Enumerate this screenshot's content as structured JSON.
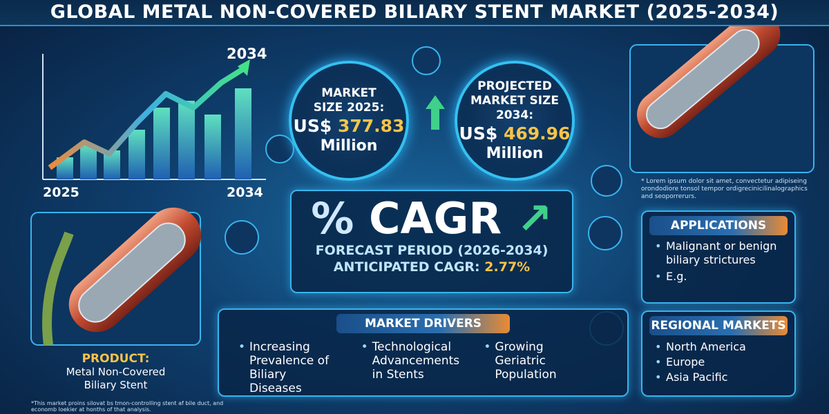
{
  "header": {
    "title": "GLOBAL METAL NON-COVERED BILIARY STENT MARKET (2025-2034)"
  },
  "trend_graphic": {
    "end_label": "2034",
    "x_start": "2025",
    "x_end": "2034"
  },
  "market_size": {
    "label": "MARKET SIZE 2025:",
    "prefix": "US$",
    "value": "377.83",
    "unit": "Million"
  },
  "projected_size": {
    "label": "PROJECTED MARKET SIZE 2034:",
    "prefix": "US$",
    "value": "469.96",
    "unit": "Million"
  },
  "cagr": {
    "symbol": "%",
    "title": "CAGR",
    "forecast_period": "FORECAST PERIOD (2026-2034)",
    "anticipated_label": "ANTICIPATED CAGR:",
    "anticipated_value": "2.77%"
  },
  "image_note": "* Lorem ipsum dolor sit amet, convectetur adipiseing orondodiore tonsol tempor ordigrecinicilinalographics and seoporrerurs.",
  "applications": {
    "heading": "APPLICATIONS",
    "items": [
      "Malignant or benign biliary strictures",
      "E.g."
    ]
  },
  "regional_markets": {
    "heading": "REGIONAL MARKETS",
    "items": [
      "North America",
      "Europe",
      "Asia Pacific"
    ]
  },
  "market_drivers": {
    "heading": "MARKET DRIVERS",
    "items": [
      "Increasing Prevalence of Biliary Diseases",
      "Technological Advancements in Stents",
      "Growing Geriatric Population"
    ]
  },
  "product": {
    "label": "PRODUCT:",
    "name": "Metal Non-Covered Biliary Stent"
  },
  "footnote": "*This market proins silovat bs tmon-controlling stent af bile duct, and economb loekier at honths of that analysis."
}
